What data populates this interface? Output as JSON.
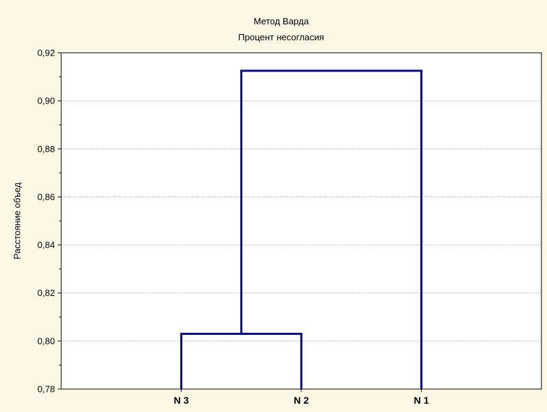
{
  "chart_data": {
    "type": "dendrogram",
    "title": "Метод Варда",
    "subtitle": "Процент несогласия",
    "ylabel": "Расстояние объед",
    "xlabel": "",
    "ylim": [
      0.78,
      0.92
    ],
    "y_ticks": [
      {
        "value": 0.78,
        "label": "0,78"
      },
      {
        "value": 0.8,
        "label": "0,80"
      },
      {
        "value": 0.82,
        "label": "0,82"
      },
      {
        "value": 0.84,
        "label": "0,84"
      },
      {
        "value": 0.86,
        "label": "0,86"
      },
      {
        "value": 0.88,
        "label": "0,88"
      },
      {
        "value": 0.9,
        "label": "0,90"
      },
      {
        "value": 0.92,
        "label": "0,92"
      }
    ],
    "leaves": [
      "N 3",
      "N 2",
      "N 1"
    ],
    "merges": [
      {
        "left": "N 3",
        "right": "N 2",
        "height": 0.803
      },
      {
        "left": "N 3 + N 2",
        "right": "N 1",
        "height": 0.9125
      }
    ],
    "grid": true,
    "colors": {
      "background": "#fdf8e6",
      "plot_background": "#ffffff",
      "line": "#0b0b80",
      "grid": "#b0b0b0"
    }
  }
}
